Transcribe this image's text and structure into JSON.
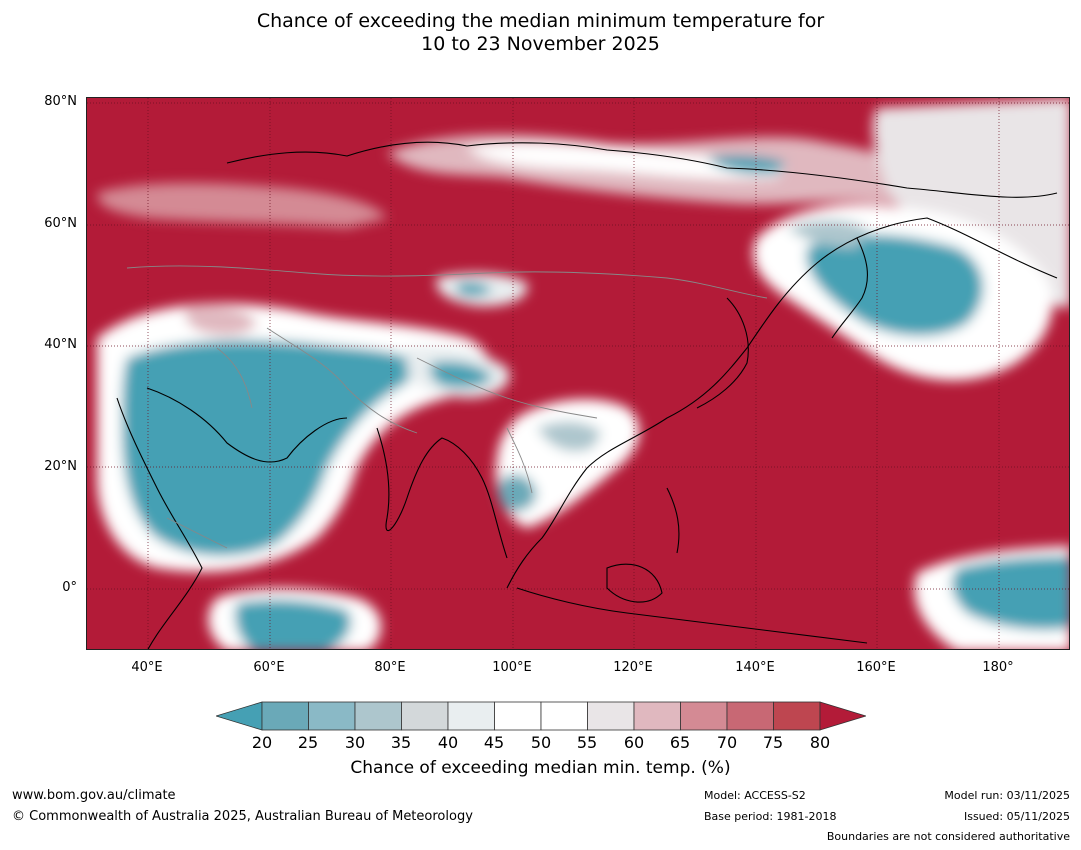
{
  "title": {
    "line1": "Chance of exceeding the median minimum temperature for",
    "line2": "10 to 23 November 2025"
  },
  "map": {
    "lat_labels": [
      "80°N",
      "60°N",
      "40°N",
      "20°N",
      "0°"
    ],
    "lon_labels": [
      "40°E",
      "60°E",
      "80°E",
      "100°E",
      "120°E",
      "140°E",
      "160°E",
      "180°"
    ],
    "background_color": "#b31b38"
  },
  "colorbar": {
    "ticks": [
      "20",
      "25",
      "30",
      "35",
      "40",
      "45",
      "50",
      "55",
      "60",
      "65",
      "70",
      "75",
      "80"
    ],
    "colors": [
      "#45a0b4",
      "#6aa9b8",
      "#8ab9c6",
      "#adc6cd",
      "#d3d8da",
      "#e9eef0",
      "#ffffff",
      "#ffffff",
      "#e9e5e7",
      "#e0b8bf",
      "#d48a94",
      "#c86874",
      "#be4650",
      "#b31b38"
    ],
    "label": "Chance of exceeding median min. temp. (%)"
  },
  "footer": {
    "website": "www.bom.gov.au/climate",
    "copyright": "© Commonwealth of Australia 2025, Australian Bureau of Meteorology",
    "model": "Model: ACCESS-S2",
    "base_period": "Base period: 1981-2018",
    "model_run": "Model run: 03/11/2025",
    "issued": "Issued: 05/11/2025",
    "disclaimer": "Boundaries are not considered authoritative"
  }
}
